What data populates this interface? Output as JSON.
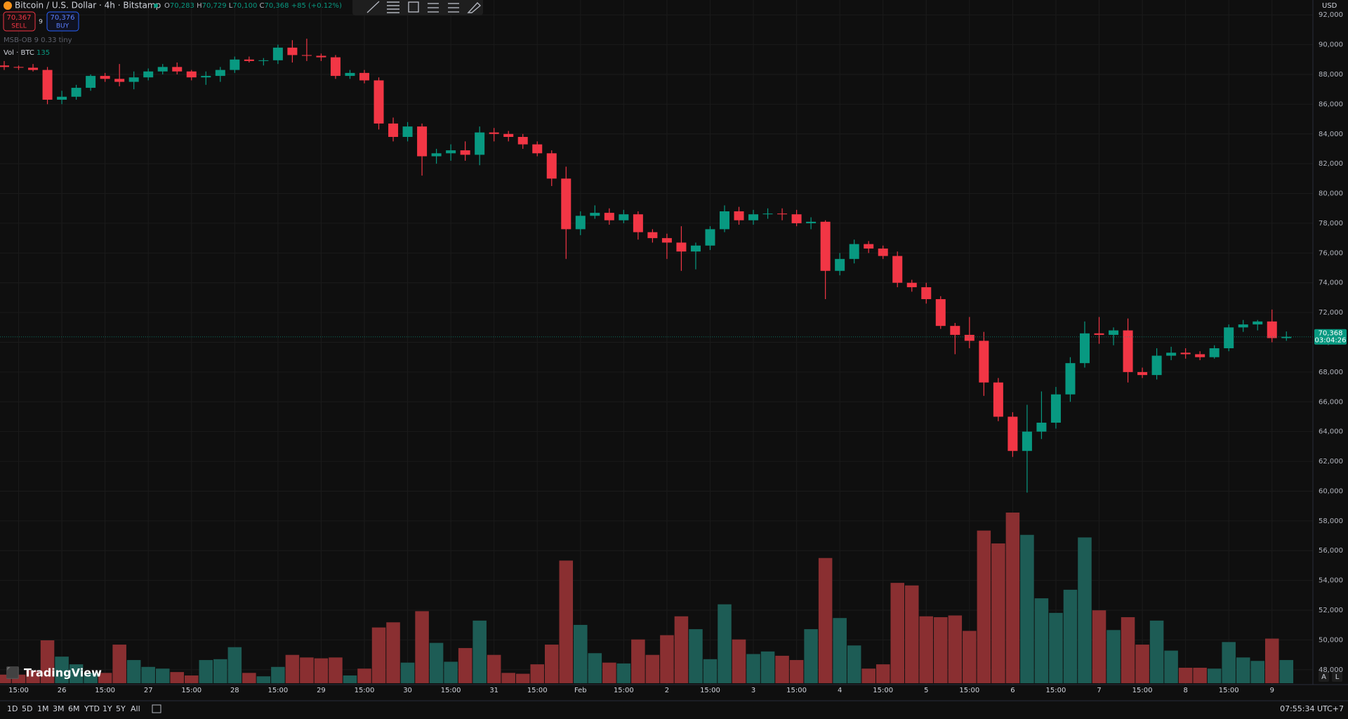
{
  "chart_data": {
    "type": "candlestick",
    "categories": [
      null,
      "15:00",
      null,
      null,
      "26",
      null,
      null,
      "15:00",
      null,
      null,
      "27",
      null,
      null,
      "15:00",
      null,
      null,
      "28",
      null,
      null,
      "15:00",
      null,
      null,
      "29",
      null,
      null,
      "15:00",
      null,
      null,
      "30",
      null,
      null,
      "15:00",
      null,
      null,
      "31",
      null,
      null,
      "15:00",
      null,
      null,
      "Feb",
      null,
      null,
      "15:00",
      null,
      null,
      "2",
      null,
      null,
      "15:00",
      null,
      null,
      "3",
      null,
      null,
      "15:00",
      null,
      null,
      "4",
      null,
      null,
      "15:00",
      null,
      null,
      "5",
      null,
      null,
      "15:00",
      null,
      null,
      "6",
      null,
      null,
      "15:00",
      null,
      null,
      "7",
      null,
      null,
      "15:00",
      null,
      null,
      "8",
      null,
      null,
      "15:00",
      null,
      null,
      "9",
      null
    ],
    "open": [
      88600,
      88500,
      88450,
      88300,
      86300,
      86500,
      87100,
      87900,
      87700,
      87500,
      87800,
      88200,
      88500,
      88200,
      87800,
      87900,
      88300,
      89000,
      88900,
      88950,
      89800,
      89300,
      89250,
      89150,
      87900,
      88100,
      87600,
      84700,
      83800,
      84500,
      82500,
      82700,
      82900,
      82600,
      84100,
      84000,
      83800,
      83300,
      82700,
      81000,
      77600,
      78500,
      78700,
      78200,
      78600,
      77400,
      77000,
      76700,
      76100,
      76500,
      77600,
      78800,
      78200,
      78600,
      78650,
      78600,
      78000,
      78100,
      74800,
      75600,
      76600,
      76300,
      75800,
      74000,
      73700,
      72900,
      71100,
      70500,
      70100,
      67300,
      65000,
      62700,
      64000,
      64600,
      66500,
      68600,
      70600,
      70500,
      70800,
      68000,
      67800,
      69100,
      69300,
      69200,
      69000,
      69600,
      71000,
      71200,
      71400,
      70283
    ],
    "high": [
      88900,
      88600,
      88700,
      88500,
      86900,
      87300,
      88000,
      88100,
      88700,
      88200,
      88400,
      88700,
      88800,
      88300,
      88200,
      88500,
      89200,
      89200,
      89100,
      90000,
      90300,
      90400,
      89400,
      89300,
      88300,
      88300,
      87800,
      85100,
      84800,
      84700,
      83000,
      83300,
      83500,
      84500,
      84400,
      84200,
      84000,
      83500,
      82900,
      81800,
      78800,
      79200,
      79000,
      78900,
      78800,
      77600,
      77300,
      77800,
      76700,
      77800,
      79200,
      79100,
      78900,
      79000,
      79000,
      78900,
      78400,
      78200,
      76000,
      76900,
      76800,
      76500,
      76100,
      74200,
      74000,
      73100,
      71300,
      71700,
      70700,
      67600,
      65300,
      65800,
      66700,
      67000,
      69000,
      71400,
      71700,
      71000,
      71600,
      68300,
      69600,
      69700,
      69600,
      69400,
      69800,
      71200,
      71500,
      71500,
      72200,
      70729
    ],
    "low": [
      88300,
      88300,
      88200,
      86000,
      86000,
      86300,
      86900,
      87500,
      87200,
      87000,
      87600,
      88000,
      88000,
      87600,
      87300,
      87500,
      88100,
      88800,
      88600,
      88700,
      88800,
      88900,
      88900,
      87700,
      87700,
      87400,
      84300,
      83500,
      83500,
      81200,
      82000,
      82200,
      82200,
      81900,
      83500,
      83500,
      83000,
      82500,
      80500,
      75600,
      77200,
      78300,
      77900,
      78000,
      76900,
      76700,
      75600,
      74800,
      74900,
      76200,
      77400,
      77900,
      77900,
      78300,
      78200,
      77800,
      77600,
      72900,
      74500,
      75300,
      76000,
      75600,
      73700,
      73400,
      72600,
      70900,
      69200,
      69600,
      66400,
      64700,
      62300,
      59900,
      63500,
      64200,
      66000,
      68300,
      69900,
      69800,
      67300,
      67600,
      67500,
      68800,
      68900,
      68800,
      68900,
      69400,
      70700,
      70800,
      70000,
      70100
    ],
    "close": [
      88500,
      88450,
      88300,
      86300,
      86500,
      87100,
      87900,
      87700,
      87500,
      87800,
      88200,
      88500,
      88200,
      87800,
      87900,
      88300,
      89000,
      88900,
      88950,
      89800,
      89300,
      89250,
      89150,
      87900,
      88100,
      87600,
      84700,
      83800,
      84500,
      82500,
      82700,
      82900,
      82600,
      84100,
      84000,
      83800,
      83300,
      82700,
      81000,
      77600,
      78500,
      78700,
      78200,
      78600,
      77400,
      77000,
      76700,
      76100,
      76500,
      77600,
      78800,
      78200,
      78600,
      78650,
      78600,
      78000,
      78100,
      74800,
      75600,
      76600,
      76300,
      75800,
      74000,
      73700,
      72900,
      71100,
      70500,
      70100,
      67300,
      65000,
      62700,
      64000,
      64600,
      66500,
      68600,
      70600,
      70500,
      70800,
      68000,
      67800,
      69100,
      69300,
      69200,
      69000,
      69600,
      71000,
      71200,
      71400,
      70283,
      70368
    ],
    "volume": [
      50,
      50,
      75,
      250,
      155,
      110,
      60,
      60,
      225,
      135,
      95,
      85,
      65,
      45,
      135,
      140,
      210,
      60,
      40,
      95,
      165,
      150,
      145,
      150,
      45,
      85,
      325,
      355,
      120,
      420,
      235,
      125,
      205,
      365,
      165,
      60,
      55,
      110,
      225,
      715,
      340,
      175,
      120,
      115,
      255,
      165,
      280,
      390,
      315,
      140,
      460,
      255,
      170,
      185,
      160,
      135,
      315,
      730,
      380,
      220,
      85,
      110,
      585,
      570,
      390,
      385,
      395,
      305,
      890,
      815,
      995,
      865,
      495,
      410,
      545,
      850,
      425,
      310,
      385,
      225,
      365,
      190,
      90,
      90,
      85,
      240,
      150,
      130,
      260,
      135
    ],
    "up_color": "#089981",
    "down_color": "#f23645",
    "volume_up_color": "#1d5c55",
    "volume_down_color": "#8a2f31",
    "ylim": [
      47000,
      93000
    ],
    "yticks": [
      {
        "value": 48000,
        "label": "48,000"
      },
      {
        "value": 50000,
        "label": "50,000"
      },
      {
        "value": 52000,
        "label": "52,000"
      },
      {
        "value": 54000,
        "label": "54,000"
      },
      {
        "value": 56000,
        "label": "56,000"
      },
      {
        "value": 58000,
        "label": "58,000"
      },
      {
        "value": 60000,
        "label": "60,000"
      },
      {
        "value": 62000,
        "label": "62,000"
      },
      {
        "value": 64000,
        "label": "64,000"
      },
      {
        "value": 66000,
        "label": "66,000"
      },
      {
        "value": 68000,
        "label": "68,000"
      },
      {
        "value": 70000,
        "label": "70,000"
      },
      {
        "value": 72000,
        "label": "72,000"
      },
      {
        "value": 74000,
        "label": "74,000"
      },
      {
        "value": 76000,
        "label": "76,000"
      },
      {
        "value": 78000,
        "label": "78,000"
      },
      {
        "value": 80000,
        "label": "80,000"
      },
      {
        "value": 82000,
        "label": "82,000"
      },
      {
        "value": 84000,
        "label": "84,000"
      },
      {
        "value": 86000,
        "label": "86,000"
      },
      {
        "value": 88000,
        "label": "88,000"
      },
      {
        "value": 90000,
        "label": "90,000"
      },
      {
        "value": 92000,
        "label": "92,000"
      }
    ],
    "grid": true
  },
  "header": {
    "symbol": "Bitcoin / U.S. Dollar · 4h · Bitstamp",
    "o": "O",
    "open": "70,283",
    "h": "H",
    "high": "70,729",
    "l": "L",
    "low": "70,100",
    "c": "C",
    "close": "70,368",
    "change": "+85 (+0.12%)"
  },
  "trade": {
    "sell_price": "70,367",
    "sell": "SELL",
    "spread": "9",
    "buy_price": "70,376",
    "buy": "BUY"
  },
  "indicators": {
    "msb": "MSB-OB 9 0.33 tiny",
    "vol": "Vol · BTC"
  },
  "price_tag": {
    "price": "70,368",
    "countdown": "03:04:26"
  },
  "currency": "USD",
  "logo": "TradingView",
  "ranges": [
    "1D",
    "5D",
    "1M",
    "3M",
    "6M",
    "YTD",
    "1Y",
    "5Y",
    "All"
  ],
  "clock": "07:55:34 UTC+7",
  "scale_buttons": [
    "A",
    "L"
  ]
}
